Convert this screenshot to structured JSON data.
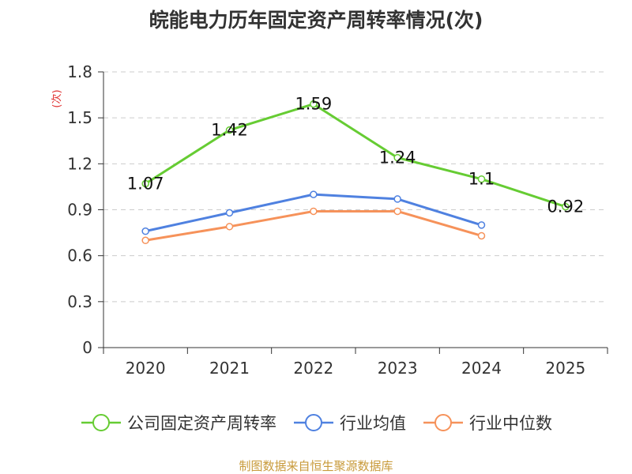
{
  "chart_data": {
    "type": "line",
    "title": "皖能电力历年固定资产周转率情况(次)",
    "xlabel": "",
    "ylabel": "(次)",
    "categories": [
      "2020",
      "2021",
      "2022",
      "2023",
      "2024",
      "2025"
    ],
    "ylim": [
      0,
      1.8
    ],
    "yticks": [
      0,
      0.3,
      0.6,
      0.9,
      1.2,
      1.5,
      1.8
    ],
    "ytick_labels": [
      "0",
      "0.3",
      "0.6",
      "0.9",
      "1.2",
      "1.5",
      "1.8"
    ],
    "grid": true,
    "legend_position": "bottom",
    "series": [
      {
        "name": "公司固定资产周转率",
        "color": "#66cc33",
        "values": [
          1.07,
          1.42,
          1.59,
          1.24,
          1.1,
          0.92
        ],
        "labels": [
          "1.07",
          "1.42",
          "1.59",
          "1.24",
          "1.1",
          "0.92"
        ]
      },
      {
        "name": "行业均值",
        "color": "#4f81e0",
        "values": [
          0.76,
          0.88,
          1.0,
          0.97,
          0.8,
          null
        ]
      },
      {
        "name": "行业中位数",
        "color": "#f6925a",
        "values": [
          0.7,
          0.79,
          0.89,
          0.89,
          0.73,
          null
        ]
      }
    ],
    "source": "制图数据来自恒生聚源数据库"
  }
}
